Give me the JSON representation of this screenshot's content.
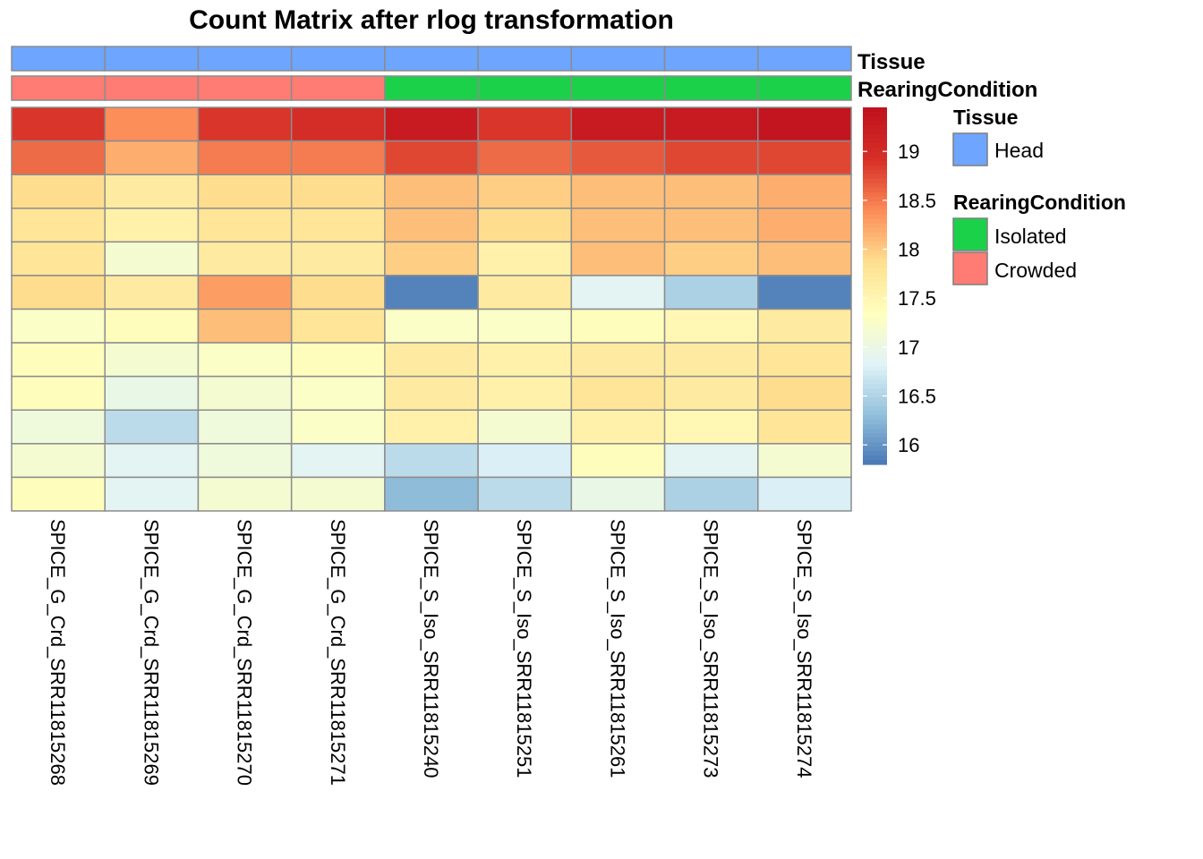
{
  "chart_data": {
    "type": "heatmap",
    "title": "Count Matrix after rlog transformation",
    "columns": [
      "SPICE_G_Crd_SRR11815268",
      "SPICE_G_Crd_SRR11815269",
      "SPICE_G_Crd_SRR11815270",
      "SPICE_G_Crd_SRR11815271",
      "SPICE_S_Iso_SRR11815240",
      "SPICE_S_Iso_SRR11815251",
      "SPICE_S_Iso_SRR11815261",
      "SPICE_S_Iso_SRR11815273",
      "SPICE_S_Iso_SRR11815274"
    ],
    "values": [
      [
        18.9,
        18.4,
        18.9,
        19.0,
        19.3,
        18.9,
        19.3,
        19.3,
        19.4
      ],
      [
        18.6,
        18.2,
        18.5,
        18.5,
        18.8,
        18.6,
        18.7,
        18.8,
        18.8
      ],
      [
        17.9,
        17.7,
        17.9,
        17.9,
        18.1,
        18.0,
        18.1,
        18.1,
        18.2
      ],
      [
        17.8,
        17.6,
        17.8,
        17.8,
        18.1,
        17.9,
        18.1,
        18.1,
        18.2
      ],
      [
        17.8,
        17.2,
        17.7,
        17.7,
        18.0,
        17.6,
        18.1,
        18.0,
        18.1
      ],
      [
        17.9,
        17.7,
        18.3,
        17.9,
        15.9,
        17.7,
        16.9,
        16.5,
        15.9
      ],
      [
        17.3,
        17.4,
        18.1,
        17.8,
        17.3,
        17.3,
        17.4,
        17.5,
        17.7
      ],
      [
        17.4,
        17.2,
        17.3,
        17.4,
        17.7,
        17.6,
        17.7,
        17.7,
        17.8
      ],
      [
        17.4,
        17.0,
        17.2,
        17.3,
        17.7,
        17.6,
        17.8,
        17.7,
        17.9
      ],
      [
        17.1,
        16.6,
        17.1,
        17.3,
        17.6,
        17.2,
        17.6,
        17.5,
        17.8
      ],
      [
        17.2,
        16.9,
        17.1,
        16.9,
        16.6,
        16.8,
        17.4,
        16.9,
        17.2
      ],
      [
        17.4,
        16.9,
        17.2,
        17.2,
        16.3,
        16.6,
        17.0,
        16.5,
        16.8
      ]
    ],
    "annotations": {
      "Tissue": [
        "Head",
        "Head",
        "Head",
        "Head",
        "Head",
        "Head",
        "Head",
        "Head",
        "Head"
      ],
      "RearingCondition": [
        "Crowded",
        "Crowded",
        "Crowded",
        "Crowded",
        "Isolated",
        "Isolated",
        "Isolated",
        "Isolated",
        "Isolated"
      ]
    },
    "color_scale": {
      "min": 15.8,
      "max": 19.45,
      "ticks": [
        "16",
        "16.5",
        "17",
        "17.5",
        "18",
        "18.5",
        "19"
      ],
      "tick_values": [
        16,
        16.5,
        17,
        17.5,
        18,
        18.5,
        19
      ],
      "palette": [
        "#4575b4",
        "#91bfdb",
        "#e0f3f8",
        "#ffffbf",
        "#fee090",
        "#fc8d59",
        "#d73027",
        "#c0121f"
      ]
    },
    "legend": {
      "placement": "right",
      "groups": [
        {
          "title": "Tissue",
          "items": [
            {
              "label": "Head",
              "color": "#6ea5ff"
            }
          ]
        },
        {
          "title": "RearingCondition",
          "items": [
            {
              "label": "Isolated",
              "color": "#1bd14a"
            },
            {
              "label": "Crowded",
              "color": "#fe7c73"
            }
          ]
        }
      ]
    },
    "annotation_colors": {
      "Head": "#6ea5ff",
      "Isolated": "#1bd14a",
      "Crowded": "#fe7c73"
    }
  }
}
